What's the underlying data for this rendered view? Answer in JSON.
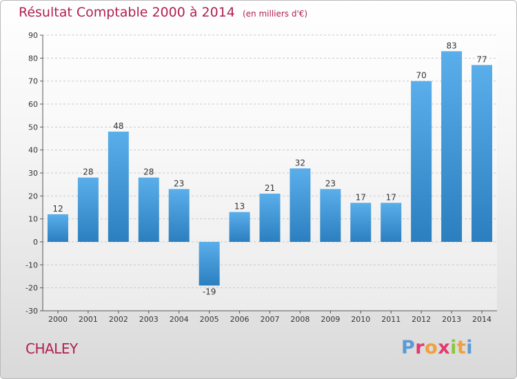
{
  "header": {
    "title": "Résultat Comptable 2000 à 2014",
    "subtitle": "(en milliers d'€)"
  },
  "commune": "CHALEY",
  "logo": {
    "text": "Proxiti"
  },
  "colors": {
    "title": "#b0204e",
    "bar_light": "#5aaeea",
    "bar_dark": "#2b7fbf",
    "grid": "#c8c8c8"
  },
  "chart_data": {
    "type": "bar",
    "title": "Résultat Comptable 2000 à 2014",
    "subtitle": "(en milliers d'€)",
    "xlabel": "",
    "ylabel": "",
    "categories": [
      "2000",
      "2001",
      "2002",
      "2003",
      "2004",
      "2005",
      "2006",
      "2007",
      "2008",
      "2009",
      "2010",
      "2011",
      "2012",
      "2013",
      "2014"
    ],
    "values": [
      12,
      28,
      48,
      28,
      23,
      -19,
      13,
      21,
      32,
      23,
      17,
      17,
      70,
      83,
      77
    ],
    "value_labels": [
      "12",
      "28",
      "48",
      "28",
      "23",
      "-19",
      "13",
      "21",
      "32",
      "23",
      "17",
      "17",
      "70",
      "83",
      "77"
    ],
    "ylim": [
      -30,
      90
    ],
    "yticks": [
      -30,
      -20,
      -10,
      0,
      10,
      20,
      30,
      40,
      50,
      60,
      70,
      80,
      90
    ],
    "grid": true
  }
}
